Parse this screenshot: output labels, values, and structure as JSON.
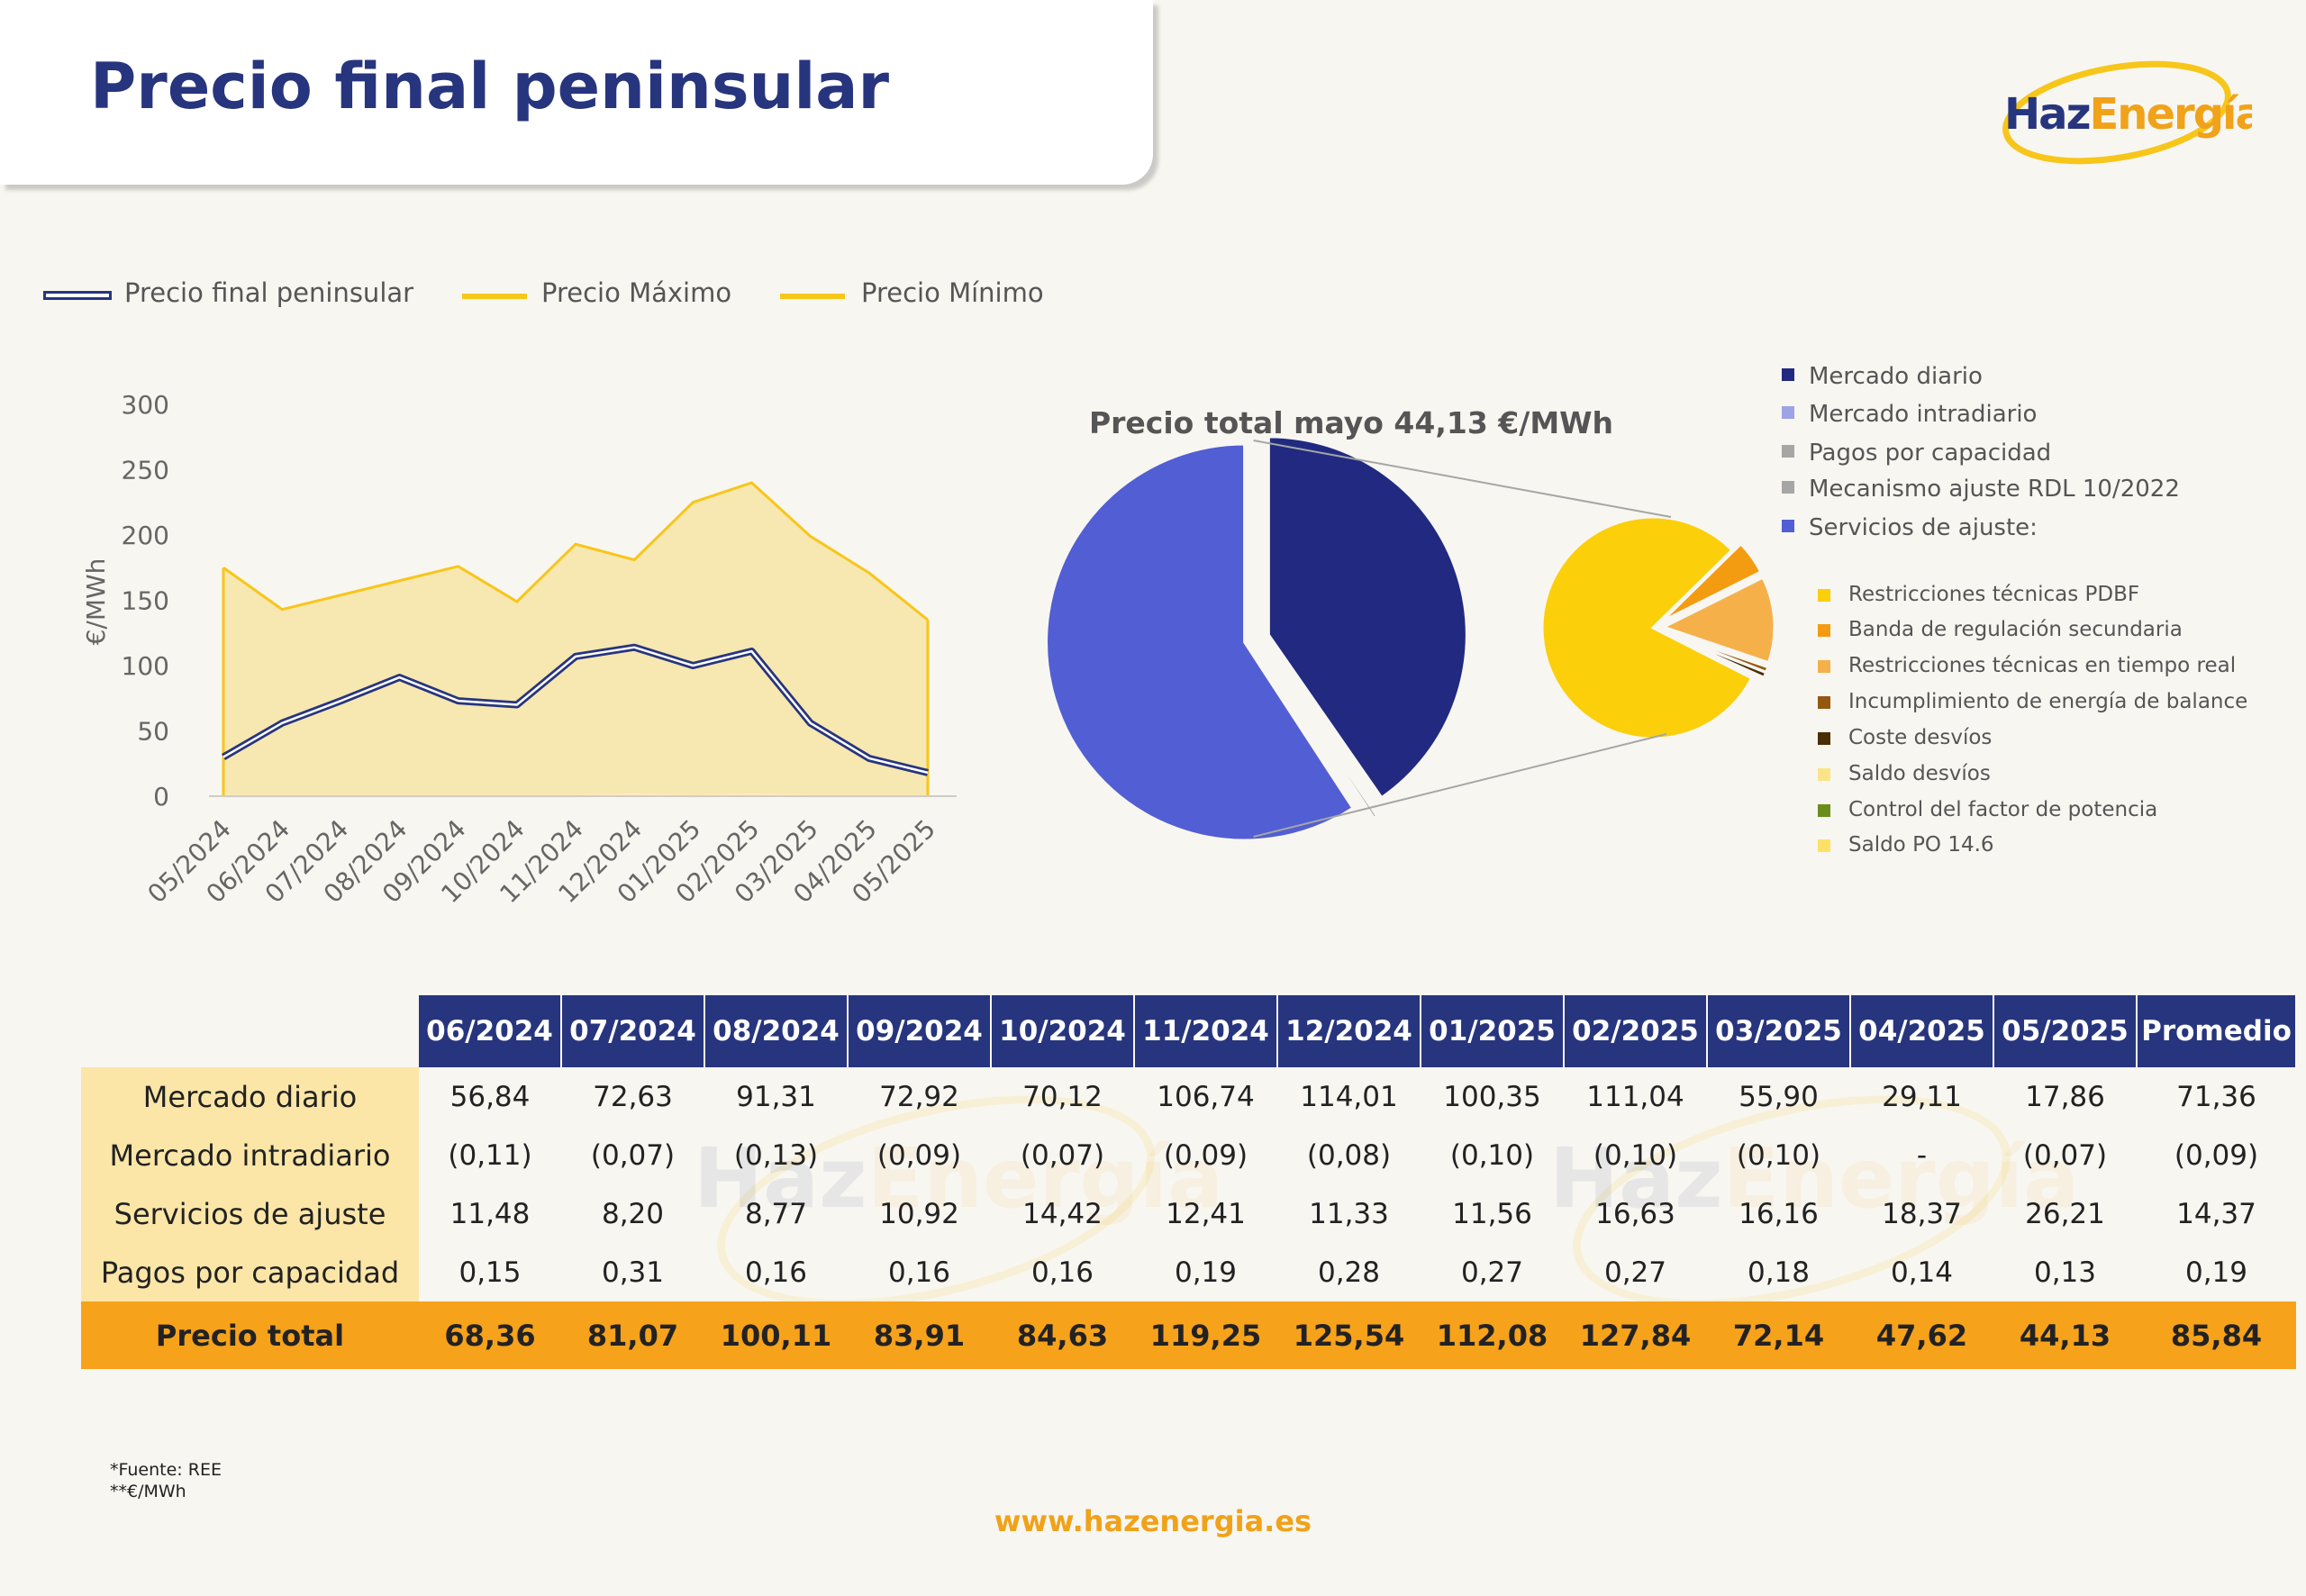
{
  "page": {
    "title": "Precio final peninsular",
    "website": "www.hazenergia.es"
  },
  "logo": {
    "text_a": "Haz",
    "text_b": "Energía"
  },
  "colors": {
    "navy": "#27357e",
    "yellow": "#f7c61a",
    "yellow_fill": "#f7e7b0",
    "orange": "#f7a21b",
    "pie_dark": "#212a80",
    "pie_blue": "#525ed3",
    "pie_yellow": "#fbcf0a"
  },
  "legend_top": [
    {
      "label": "Precio final peninsular",
      "color": "#27357e",
      "style": "outline"
    },
    {
      "label": "Precio Máximo",
      "color": "#f7c61a",
      "style": "line"
    },
    {
      "label": "Precio Mínimo",
      "color": "#f7c61a",
      "style": "line"
    }
  ],
  "chart_data": [
    {
      "type": "area",
      "ylabel": "€/MWh",
      "ylim": [
        0,
        300
      ],
      "yticks": [
        0,
        50,
        100,
        150,
        200,
        250,
        300
      ],
      "grid": false,
      "legend": "top",
      "categories": [
        "05/2024",
        "06/2024",
        "07/2024",
        "08/2024",
        "09/2024",
        "10/2024",
        "11/2024",
        "12/2024",
        "01/2025",
        "02/2025",
        "03/2025",
        "04/2025",
        "05/2025"
      ],
      "series": [
        {
          "name": "Precio Máximo",
          "values": [
            175,
            143,
            154,
            165,
            176,
            149,
            193,
            181,
            225,
            240,
            199,
            171,
            135
          ]
        },
        {
          "name": "Precio Mínimo",
          "values": [
            0,
            0,
            0,
            0,
            0,
            0,
            0,
            1,
            0,
            1,
            0,
            0,
            0
          ]
        },
        {
          "name": "Precio final peninsular",
          "values": [
            30,
            56,
            73,
            91,
            73,
            70,
            107,
            114,
            100,
            111,
            56,
            29,
            18
          ]
        }
      ]
    },
    {
      "type": "pie",
      "title": "Precio total mayo 44,13 €/MWh",
      "legend": "right",
      "slices": [
        {
          "label": "Mercado diario",
          "value": 17.86,
          "color": "#212a80"
        },
        {
          "label": "Mercado intradiario",
          "value": 0.07,
          "color": "#9ea3e6"
        },
        {
          "label": "Pagos por capacidad",
          "value": 0.13,
          "color": "#a6a6a6"
        },
        {
          "label": "Mecanismo ajuste RDL 10/2022",
          "value": 0,
          "color": "#a6a6a6"
        },
        {
          "label": "Servicios de ajuste:",
          "value": 26.21,
          "color": "#525ed3"
        }
      ],
      "breakdown": [
        {
          "label": "Restricciones técnicas PDBF",
          "value": 21.0,
          "color": "#fbcf0a"
        },
        {
          "label": "Banda de regulación secundaria",
          "value": 1.3,
          "color": "#f39c12"
        },
        {
          "label": "Restricciones técnicas en tiempo real",
          "value": 3.3,
          "color": "#f5b04a"
        },
        {
          "label": "Incumplimiento de energía de balance",
          "value": 0.2,
          "color": "#94590f"
        },
        {
          "label": "Coste desvíos",
          "value": 0.2,
          "color": "#4a2e05"
        },
        {
          "label": "Saldo desvíos",
          "value": 0.1,
          "color": "#fbe38a"
        },
        {
          "label": "Control del factor de potencia",
          "value": 0.05,
          "color": "#6b8e1a"
        },
        {
          "label": "Saldo PO 14.6",
          "value": 0.05,
          "color": "#ffe066"
        }
      ]
    }
  ],
  "table": {
    "columns": [
      "06/2024",
      "07/2024",
      "08/2024",
      "09/2024",
      "10/2024",
      "11/2024",
      "12/2024",
      "01/2025",
      "02/2025",
      "03/2025",
      "04/2025",
      "05/2025",
      "Promedio"
    ],
    "rows": [
      {
        "label": "Mercado diario",
        "values": [
          "56,84",
          "72,63",
          "91,31",
          "72,92",
          "70,12",
          "106,74",
          "114,01",
          "100,35",
          "111,04",
          "55,90",
          "29,11",
          "17,86",
          "71,36"
        ]
      },
      {
        "label": "Mercado intradiario",
        "values": [
          "(0,11)",
          "(0,07)",
          "(0,13)",
          "(0,09)",
          "(0,07)",
          "(0,09)",
          "(0,08)",
          "(0,10)",
          "(0,10)",
          "(0,10)",
          "-",
          "(0,07)",
          "(0,09)"
        ]
      },
      {
        "label": "Servicios de ajuste",
        "values": [
          "11,48",
          "8,20",
          "8,77",
          "10,92",
          "14,42",
          "12,41",
          "11,33",
          "11,56",
          "16,63",
          "16,16",
          "18,37",
          "26,21",
          "14,37"
        ]
      },
      {
        "label": "Pagos por capacidad",
        "values": [
          "0,15",
          "0,31",
          "0,16",
          "0,16",
          "0,16",
          "0,19",
          "0,28",
          "0,27",
          "0,27",
          "0,18",
          "0,14",
          "0,13",
          "0,19"
        ]
      }
    ],
    "total": {
      "label": "Precio total",
      "values": [
        "68,36",
        "81,07",
        "100,11",
        "83,91",
        "84,63",
        "119,25",
        "125,54",
        "112,08",
        "127,84",
        "72,14",
        "47,62",
        "44,13",
        "85,84"
      ]
    }
  },
  "footnotes": [
    "*Fuente: REE",
    "**€/MWh"
  ]
}
